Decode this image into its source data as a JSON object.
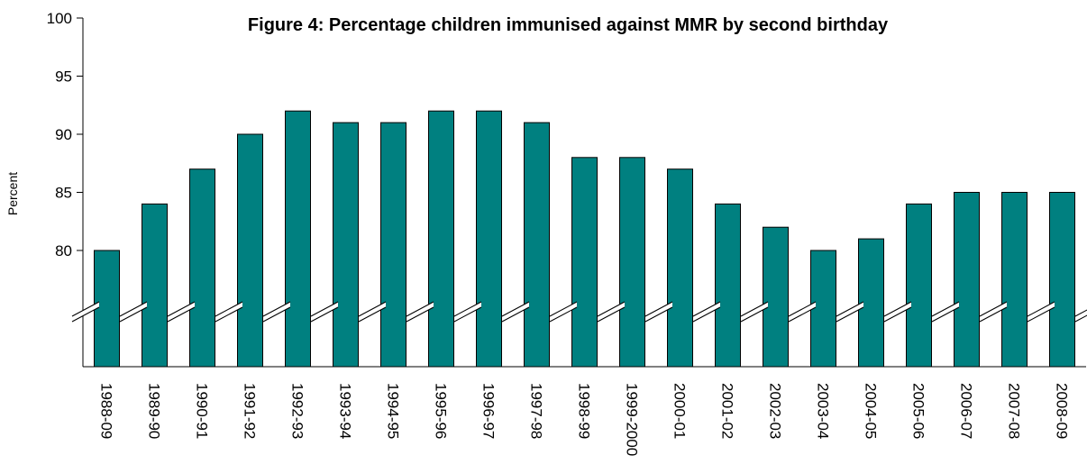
{
  "chart_data": {
    "type": "bar",
    "title": "Figure 4: Percentage children immunised against MMR by second birthday",
    "y_label": "Percent",
    "categories": [
      "1988-09",
      "1989-90",
      "1990-91",
      "1991-92",
      "1992-93",
      "1993-94",
      "1994-95",
      "1995-96",
      "1996-97",
      "1997-98",
      "1998-99",
      "1999-2000",
      "2000-01",
      "2001-02",
      "2002-03",
      "2003-04",
      "2004-05",
      "2005-06",
      "2006-07",
      "2007-08",
      "2008-09"
    ],
    "values": [
      80,
      84,
      87,
      90,
      92,
      91,
      91,
      92,
      92,
      91,
      88,
      88,
      87,
      84,
      82,
      80,
      81,
      84,
      85,
      85,
      85
    ],
    "color": "#008080",
    "ylim": [
      70,
      100
    ],
    "yticks": [
      80,
      85,
      90,
      95,
      100
    ],
    "grid": false,
    "axis_break": true
  }
}
